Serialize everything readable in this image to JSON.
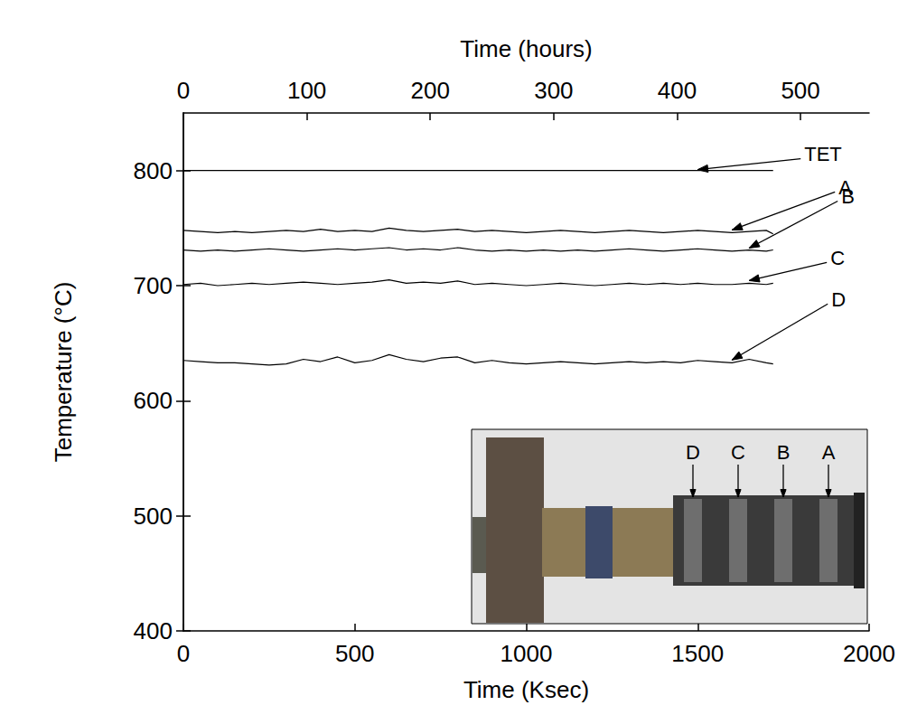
{
  "chart_data": {
    "type": "line",
    "x_label": "Time (Ksec)",
    "x2_label": "Time (hours)",
    "y_label": "Temperature (°C)",
    "x": [
      0,
      50,
      100,
      150,
      200,
      250,
      300,
      350,
      400,
      450,
      500,
      550,
      600,
      650,
      700,
      750,
      800,
      850,
      900,
      950,
      1000,
      1050,
      1100,
      1150,
      1200,
      1250,
      1300,
      1350,
      1400,
      1450,
      1500,
      1550,
      1600,
      1650,
      1700,
      1720
    ],
    "series": [
      {
        "name": "TET",
        "color": "#000000",
        "values": [
          800,
          800,
          800,
          800,
          800,
          800,
          800,
          800,
          800,
          800,
          800,
          800,
          800,
          800,
          800,
          800,
          800,
          800,
          800,
          800,
          800,
          800,
          800,
          800,
          800,
          800,
          800,
          800,
          800,
          800,
          800,
          800,
          800,
          800,
          800,
          800
        ]
      },
      {
        "name": "A",
        "color": "#000000",
        "values": [
          748,
          747,
          746,
          747,
          746,
          747,
          748,
          747,
          749,
          747,
          748,
          747,
          750,
          748,
          747,
          748,
          749,
          747,
          748,
          747,
          746,
          747,
          748,
          747,
          746,
          747,
          748,
          747,
          746,
          747,
          748,
          747,
          746,
          747,
          748,
          745
        ]
      },
      {
        "name": "B",
        "color": "#000000",
        "values": [
          731,
          730,
          731,
          730,
          731,
          732,
          731,
          730,
          731,
          732,
          731,
          732,
          733,
          731,
          732,
          731,
          733,
          731,
          730,
          731,
          730,
          731,
          730,
          731,
          730,
          731,
          732,
          731,
          730,
          731,
          732,
          731,
          730,
          731,
          730,
          731
        ]
      },
      {
        "name": "C",
        "color": "#000000",
        "values": [
          701,
          702,
          700,
          701,
          702,
          701,
          702,
          703,
          702,
          701,
          702,
          703,
          705,
          702,
          703,
          702,
          704,
          701,
          702,
          701,
          700,
          701,
          702,
          701,
          700,
          701,
          702,
          701,
          702,
          701,
          702,
          701,
          701,
          702,
          701,
          702
        ]
      },
      {
        "name": "D",
        "color": "#000000",
        "values": [
          635,
          634,
          633,
          633,
          632,
          631,
          632,
          636,
          634,
          638,
          633,
          635,
          640,
          636,
          634,
          637,
          638,
          633,
          635,
          633,
          632,
          633,
          634,
          633,
          632,
          633,
          634,
          633,
          634,
          633,
          635,
          634,
          633,
          636,
          633,
          632
        ]
      }
    ],
    "xlim": [
      0,
      2000
    ],
    "xticks": [
      0,
      500,
      1000,
      1500,
      2000
    ],
    "x2lim": [
      0,
      555.56
    ],
    "x2ticks": [
      0,
      100,
      200,
      300,
      400,
      500
    ],
    "ylim": [
      400,
      850
    ],
    "yticks": [
      400,
      500,
      600,
      700,
      800
    ],
    "grid": false,
    "inset": {
      "labels": [
        "D",
        "C",
        "B",
        "A"
      ]
    }
  }
}
